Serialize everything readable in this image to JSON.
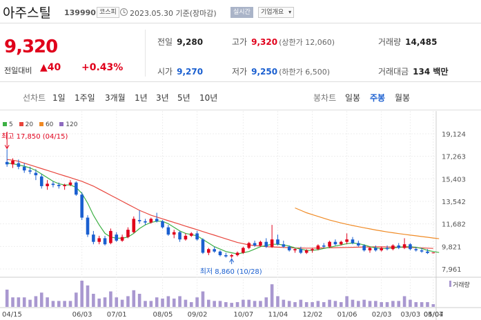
{
  "header": {
    "stock_name": "아주스틸",
    "stock_code": "139990",
    "market": "코스피",
    "date_text": "2023.05.30 기준(장마감)",
    "realtime": "실시간",
    "company_info": "기업개요"
  },
  "quote": {
    "price": "9,320",
    "change_label": "전일대비",
    "change": "40",
    "change_pct": "+0.43%",
    "prev_close": {
      "label": "전일",
      "value": "9,280"
    },
    "high": {
      "label": "고가",
      "value": "9,320",
      "sub": "(상한가 12,060)"
    },
    "volume": {
      "label": "거래량",
      "value": "14,485"
    },
    "open": {
      "label": "시가",
      "value": "9,270"
    },
    "low": {
      "label": "저가",
      "value": "9,250",
      "sub": "(하한가 6,500)"
    },
    "amount": {
      "label": "거래대금",
      "value": "134 백만"
    }
  },
  "tabs": {
    "line_label": "선차트",
    "line": [
      "1일",
      "1주일",
      "3개월",
      "1년",
      "3년",
      "5년",
      "10년"
    ],
    "candle_label": "봉차트",
    "candle": [
      "일봉",
      "주봉",
      "월봉"
    ],
    "candle_active": "주봉"
  },
  "colors": {
    "up": "#e0001b",
    "down": "#1a5fd0",
    "ma5": "#3cb043",
    "ma20": "#e8453c",
    "ma60": "#f08a24",
    "ma120": "#8e6bbf",
    "volume": "#a998d0"
  },
  "chart_data": {
    "type": "candlestick",
    "legend": [
      {
        "name": "5",
        "color": "#3cb043"
      },
      {
        "name": "20",
        "color": "#e8453c"
      },
      {
        "name": "60",
        "color": "#f08a24"
      },
      {
        "name": "120",
        "color": "#8e6bbf"
      }
    ],
    "y_ticks": [
      "19,124",
      "17,263",
      "15,403",
      "13,542",
      "11,682",
      "9,821",
      "7,961"
    ],
    "ylim": [
      7961,
      19124
    ],
    "x_ticks": [
      "04/15",
      "06/03",
      "07/01",
      "08/05",
      "09/02",
      "10/07",
      "11/04",
      "12/02",
      "01/06",
      "02/03",
      "03/03",
      "04/07",
      "05/04"
    ],
    "volume_label": "거래량",
    "high_annotation": "최고 17,850 (04/15)",
    "low_annotation": "최저 8,860 (10/28)",
    "candles": [
      {
        "o": 16800,
        "h": 17850,
        "l": 16400,
        "c": 16600
      },
      {
        "o": 16600,
        "h": 17100,
        "l": 16300,
        "c": 16900
      },
      {
        "o": 16700,
        "h": 17000,
        "l": 16200,
        "c": 16400
      },
      {
        "o": 16400,
        "h": 16700,
        "l": 15900,
        "c": 16100
      },
      {
        "o": 16100,
        "h": 16400,
        "l": 15800,
        "c": 16000
      },
      {
        "o": 15900,
        "h": 16200,
        "l": 15300,
        "c": 15700
      },
      {
        "o": 15600,
        "h": 15800,
        "l": 14600,
        "c": 14800
      },
      {
        "o": 14800,
        "h": 15300,
        "l": 14500,
        "c": 15000
      },
      {
        "o": 15000,
        "h": 15200,
        "l": 14700,
        "c": 14900
      },
      {
        "o": 14900,
        "h": 15100,
        "l": 14600,
        "c": 14800
      },
      {
        "o": 14800,
        "h": 15000,
        "l": 14500,
        "c": 14900
      },
      {
        "o": 14900,
        "h": 15300,
        "l": 14800,
        "c": 15100
      },
      {
        "o": 15100,
        "h": 15200,
        "l": 14000,
        "c": 14100
      },
      {
        "o": 14100,
        "h": 14300,
        "l": 12000,
        "c": 12200
      },
      {
        "o": 12200,
        "h": 12400,
        "l": 10600,
        "c": 10800
      },
      {
        "o": 10800,
        "h": 11100,
        "l": 10000,
        "c": 10200
      },
      {
        "o": 10200,
        "h": 10700,
        "l": 10000,
        "c": 10500
      },
      {
        "o": 10500,
        "h": 10700,
        "l": 9900,
        "c": 10000
      },
      {
        "o": 10100,
        "h": 11300,
        "l": 10000,
        "c": 11100
      },
      {
        "o": 10800,
        "h": 11000,
        "l": 10200,
        "c": 10300
      },
      {
        "o": 10300,
        "h": 10800,
        "l": 10200,
        "c": 10600
      },
      {
        "o": 10600,
        "h": 11400,
        "l": 10500,
        "c": 11200
      },
      {
        "o": 11000,
        "h": 12300,
        "l": 10900,
        "c": 12100
      },
      {
        "o": 12000,
        "h": 12800,
        "l": 11700,
        "c": 11900
      },
      {
        "o": 11900,
        "h": 12100,
        "l": 11600,
        "c": 11800
      },
      {
        "o": 11800,
        "h": 12200,
        "l": 11700,
        "c": 12100
      },
      {
        "o": 12100,
        "h": 12600,
        "l": 11800,
        "c": 11900
      },
      {
        "o": 11900,
        "h": 12000,
        "l": 11300,
        "c": 11400
      },
      {
        "o": 11400,
        "h": 11600,
        "l": 10700,
        "c": 10800
      },
      {
        "o": 10800,
        "h": 11200,
        "l": 10500,
        "c": 11000
      },
      {
        "o": 11000,
        "h": 11100,
        "l": 10200,
        "c": 10400
      },
      {
        "o": 10400,
        "h": 10900,
        "l": 10300,
        "c": 10700
      },
      {
        "o": 10700,
        "h": 11000,
        "l": 10600,
        "c": 10900
      },
      {
        "o": 10900,
        "h": 11100,
        "l": 10300,
        "c": 10400
      },
      {
        "o": 10400,
        "h": 10500,
        "l": 9200,
        "c": 9300
      },
      {
        "o": 9300,
        "h": 9700,
        "l": 9100,
        "c": 9600
      },
      {
        "o": 9600,
        "h": 9800,
        "l": 9300,
        "c": 9400
      },
      {
        "o": 9400,
        "h": 9500,
        "l": 9000,
        "c": 9100
      },
      {
        "o": 9100,
        "h": 9300,
        "l": 8900,
        "c": 9000
      },
      {
        "o": 9000,
        "h": 9200,
        "l": 8860,
        "c": 9100
      },
      {
        "o": 9100,
        "h": 9400,
        "l": 9000,
        "c": 9300
      },
      {
        "o": 9300,
        "h": 9800,
        "l": 9200,
        "c": 9700
      },
      {
        "o": 9700,
        "h": 10200,
        "l": 9600,
        "c": 10100
      },
      {
        "o": 10100,
        "h": 10300,
        "l": 9800,
        "c": 9900
      },
      {
        "o": 9900,
        "h": 10300,
        "l": 9800,
        "c": 10200
      },
      {
        "o": 10200,
        "h": 10500,
        "l": 9700,
        "c": 9800
      },
      {
        "o": 9800,
        "h": 11600,
        "l": 9700,
        "c": 10400
      },
      {
        "o": 10400,
        "h": 10800,
        "l": 9900,
        "c": 10000
      },
      {
        "o": 10000,
        "h": 10300,
        "l": 9700,
        "c": 9800
      },
      {
        "o": 9800,
        "h": 9900,
        "l": 9400,
        "c": 9500
      },
      {
        "o": 9500,
        "h": 9700,
        "l": 9300,
        "c": 9600
      },
      {
        "o": 9600,
        "h": 9800,
        "l": 9200,
        "c": 9300
      },
      {
        "o": 9300,
        "h": 9600,
        "l": 9200,
        "c": 9500
      },
      {
        "o": 9500,
        "h": 9700,
        "l": 9300,
        "c": 9600
      },
      {
        "o": 9600,
        "h": 10000,
        "l": 9500,
        "c": 9900
      },
      {
        "o": 9900,
        "h": 10100,
        "l": 9700,
        "c": 9800
      },
      {
        "o": 9800,
        "h": 10300,
        "l": 9700,
        "c": 10200
      },
      {
        "o": 10200,
        "h": 10400,
        "l": 9900,
        "c": 10000
      },
      {
        "o": 10000,
        "h": 10300,
        "l": 9900,
        "c": 10200
      },
      {
        "o": 10200,
        "h": 10900,
        "l": 10000,
        "c": 10400
      },
      {
        "o": 10400,
        "h": 10600,
        "l": 10000,
        "c": 10100
      },
      {
        "o": 10100,
        "h": 10300,
        "l": 9800,
        "c": 9900
      },
      {
        "o": 9900,
        "h": 10000,
        "l": 9400,
        "c": 9500
      },
      {
        "o": 9500,
        "h": 9800,
        "l": 9300,
        "c": 9700
      },
      {
        "o": 9700,
        "h": 9900,
        "l": 9400,
        "c": 9500
      },
      {
        "o": 9500,
        "h": 9800,
        "l": 9400,
        "c": 9700
      },
      {
        "o": 9700,
        "h": 9900,
        "l": 9500,
        "c": 9600
      },
      {
        "o": 9600,
        "h": 10000,
        "l": 9500,
        "c": 9900
      },
      {
        "o": 9900,
        "h": 10100,
        "l": 9600,
        "c": 9700
      },
      {
        "o": 9700,
        "h": 10500,
        "l": 9600,
        "c": 10000
      },
      {
        "o": 10000,
        "h": 10100,
        "l": 9500,
        "c": 9600
      },
      {
        "o": 9600,
        "h": 9800,
        "l": 9400,
        "c": 9500
      },
      {
        "o": 9500,
        "h": 9700,
        "l": 9300,
        "c": 9400
      },
      {
        "o": 9400,
        "h": 9600,
        "l": 9200,
        "c": 9280
      },
      {
        "o": 9270,
        "h": 9320,
        "l": 9250,
        "c": 9320
      }
    ],
    "ma5": [
      16700,
      16650,
      16550,
      16450,
      16300,
      16100,
      15800,
      15500,
      15200,
      15000,
      14900,
      14900,
      14700,
      14200,
      13400,
      12400,
      11600,
      10900,
      10600,
      10500,
      10500,
      10600,
      10900,
      11300,
      11600,
      11800,
      11900,
      11900,
      11700,
      11400,
      11100,
      10900,
      10800,
      10700,
      10400,
      10100,
      9800,
      9600,
      9400,
      9300,
      9200,
      9300,
      9400,
      9600,
      9800,
      9900,
      10000,
      10000,
      9950,
      9850,
      9700,
      9600,
      9500,
      9500,
      9550,
      9650,
      9750,
      9850,
      9950,
      10050,
      10100,
      10050,
      9950,
      9800,
      9700,
      9650,
      9650,
      9700,
      9750,
      9800,
      9800,
      9750,
      9650,
      9500,
      9400,
      9320
    ],
    "ma20": [
      17000,
      16950,
      16850,
      16700,
      16550,
      16400,
      16250,
      16100,
      15950,
      15800,
      15650,
      15500,
      15350,
      15200,
      15000,
      14800,
      14550,
      14300,
      14050,
      13800,
      13550,
      13300,
      13050,
      12800,
      12600,
      12400,
      12250,
      12100,
      11950,
      11800,
      11650,
      11500,
      11350,
      11200,
      11050,
      10900,
      10750,
      10600,
      10450,
      10300,
      10150,
      10050,
      9950,
      9900,
      9850,
      9800,
      9780,
      9760,
      9740,
      9720,
      9700,
      9690,
      9680,
      9680,
      9690,
      9700,
      9710,
      9720,
      9730,
      9740,
      9750,
      9760,
      9770,
      9780,
      9790,
      9790,
      9780,
      9770,
      9760,
      9750,
      9740,
      9720,
      9700,
      9680,
      9660
    ],
    "ma60": [
      null,
      null,
      null,
      null,
      null,
      null,
      null,
      null,
      null,
      null,
      null,
      null,
      null,
      null,
      null,
      null,
      null,
      null,
      null,
      null,
      null,
      null,
      null,
      null,
      null,
      null,
      null,
      null,
      null,
      null,
      null,
      null,
      null,
      null,
      null,
      null,
      null,
      null,
      null,
      null,
      null,
      null,
      null,
      null,
      null,
      null,
      null,
      null,
      null,
      null,
      13000,
      12800,
      12600,
      12450,
      12300,
      12150,
      12000,
      11880,
      11760,
      11650,
      11550,
      11450,
      11360,
      11270,
      11180,
      11100,
      11020,
      10950,
      10880,
      10820,
      10760,
      10700,
      10640,
      10580,
      10520,
      10460
    ]
  }
}
